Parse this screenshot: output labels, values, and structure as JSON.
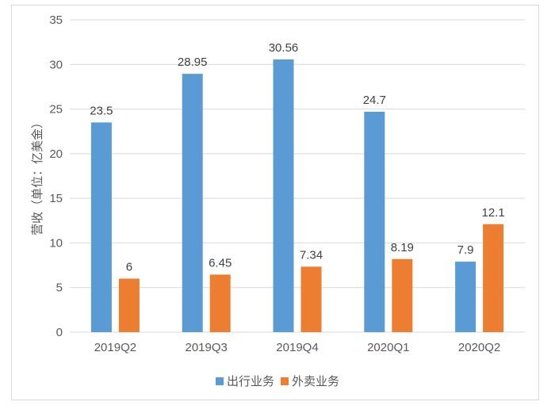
{
  "chart_data": {
    "type": "bar",
    "title": "",
    "xlabel": "",
    "ylabel": "营收（单位：亿美金）",
    "ylim": [
      0,
      35
    ],
    "yticks": [
      0,
      5,
      10,
      15,
      20,
      25,
      30,
      35
    ],
    "grid": true,
    "legend_position": "bottom",
    "categories": [
      "2019Q2",
      "2019Q3",
      "2019Q4",
      "2020Q1",
      "2020Q2"
    ],
    "series": [
      {
        "name": "出行业务",
        "color": "#5b9bd5",
        "values": [
          23.5,
          28.95,
          30.56,
          24.7,
          7.9
        ],
        "labels": [
          "23.5",
          "28.95",
          "30.56",
          "24.7",
          "7.9"
        ]
      },
      {
        "name": "外卖业务",
        "color": "#ed7d31",
        "values": [
          6,
          6.45,
          7.34,
          8.19,
          12.1
        ],
        "labels": [
          "6",
          "6.45",
          "7.34",
          "8.19",
          "12.1"
        ]
      }
    ]
  }
}
